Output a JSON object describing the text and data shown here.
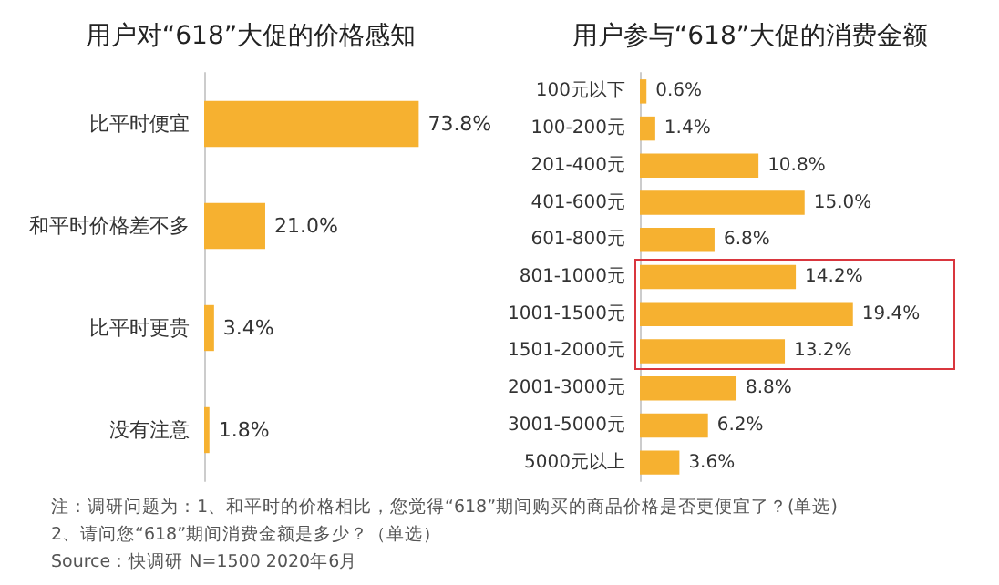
{
  "chart_data": [
    {
      "type": "bar",
      "orientation": "horizontal",
      "title": "用户对“618”大促的价格感知",
      "categories": [
        "比平时便宜",
        "和平时价格差不多",
        "比平时更贵",
        "没有注意"
      ],
      "values": [
        73.8,
        21.0,
        3.4,
        1.8
      ],
      "value_labels": [
        "73.8%",
        "21.0%",
        "3.4%",
        "1.8%"
      ],
      "color": "#f6b130",
      "tick_labels": "y",
      "annotations": [
        "注：调研问题为：1、和平时的价格相比，您觉得“618”期间购买的商品价格是否更便宜了？(单选)",
        "2、请问您“618”期间消费金额是多少？（单选）",
        "Source：快调研 N=1500 2020年6月"
      ]
    },
    {
      "type": "bar",
      "orientation": "horizontal",
      "title": "用户参与“618”大促的消费金额",
      "categories": [
        "100元以下",
        "100-200元",
        "201-400元",
        "401-600元",
        "601-800元",
        "801-1000元",
        "1001-1500元",
        "1501-2000元",
        "2001-3000元",
        "3001-5000元",
        "5000元以上"
      ],
      "values": [
        0.6,
        1.4,
        10.8,
        15.0,
        6.8,
        14.2,
        19.4,
        13.2,
        8.8,
        6.2,
        3.6
      ],
      "value_labels": [
        "0.6%",
        "1.4%",
        "10.8%",
        "15.0%",
        "6.8%",
        "14.2%",
        "19.4%",
        "13.2%",
        "8.8%",
        "6.2%",
        "3.6%"
      ],
      "color": "#f6b130",
      "tick_labels": "y"
    }
  ]
}
